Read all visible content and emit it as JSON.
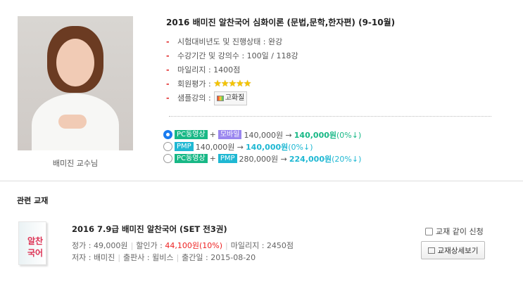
{
  "instructor": {
    "name": "배미진 교수님"
  },
  "course": {
    "title": "2016 배미진 알찬국어 심화이론 (문법,문학,한자편) (9-10월)",
    "info": [
      "시험대비년도 및 진행상태 : 완강",
      "수강기간 및 강의수 : 100일 / 118강",
      "마일리지 : 1400점"
    ],
    "rating_label": "회원평가 :",
    "rating": 5,
    "stars": "★★★★★",
    "sample_label": "샘플강의 :",
    "sample_button": "고화질"
  },
  "options": [
    {
      "selected": true,
      "tags": [
        {
          "label": "PC동영상",
          "color": "#18b886"
        },
        {
          "label": "모바일",
          "color": "#9a86ef"
        }
      ],
      "price": "140,000원 →",
      "sale": "140,000원",
      "discount": "(0%↓)",
      "accent": "#18b886"
    },
    {
      "selected": false,
      "tags": [
        {
          "label": "PMP",
          "color": "#1fb8d3"
        }
      ],
      "price": "140,000원 →",
      "sale": "140,000원",
      "discount": "(0%↓)",
      "accent": "#1fb8d3"
    },
    {
      "selected": false,
      "tags": [
        {
          "label": "PC동영상",
          "color": "#18b886"
        },
        {
          "label": "PMP",
          "color": "#1fb8d3"
        }
      ],
      "price": "280,000원 →",
      "sale": "224,000원",
      "discount": "(20%↓)",
      "accent": "#1fb8d3"
    }
  ],
  "plus": "+",
  "related": {
    "heading": "관련 교재",
    "book_cover_text": "알찬국어",
    "title": "2016 7.9급 배미진 알찬국어 (SET 전3권)",
    "list_price": "정가 : 49,000원",
    "sale_label": "할인가 :",
    "sale_price": "44,100원(10%)",
    "mileage": "마일리지 : 2450점",
    "author": "저자 : 배미진",
    "publisher": "출판사 : 윌비스",
    "date": "출간일 : 2015-08-20",
    "checkbox_label": "교재 같이 신청",
    "detail_button": "교재상세보기"
  }
}
